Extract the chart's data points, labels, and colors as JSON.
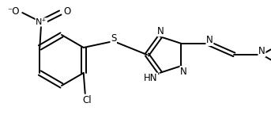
{
  "bg_color": "#ffffff",
  "line_color": "#000000",
  "line_width": 1.4,
  "font_size": 8.5,
  "fig_width": 3.43,
  "fig_height": 1.64,
  "dpi": 100,
  "xlim": [
    0,
    343
  ],
  "ylim": [
    0,
    164
  ]
}
